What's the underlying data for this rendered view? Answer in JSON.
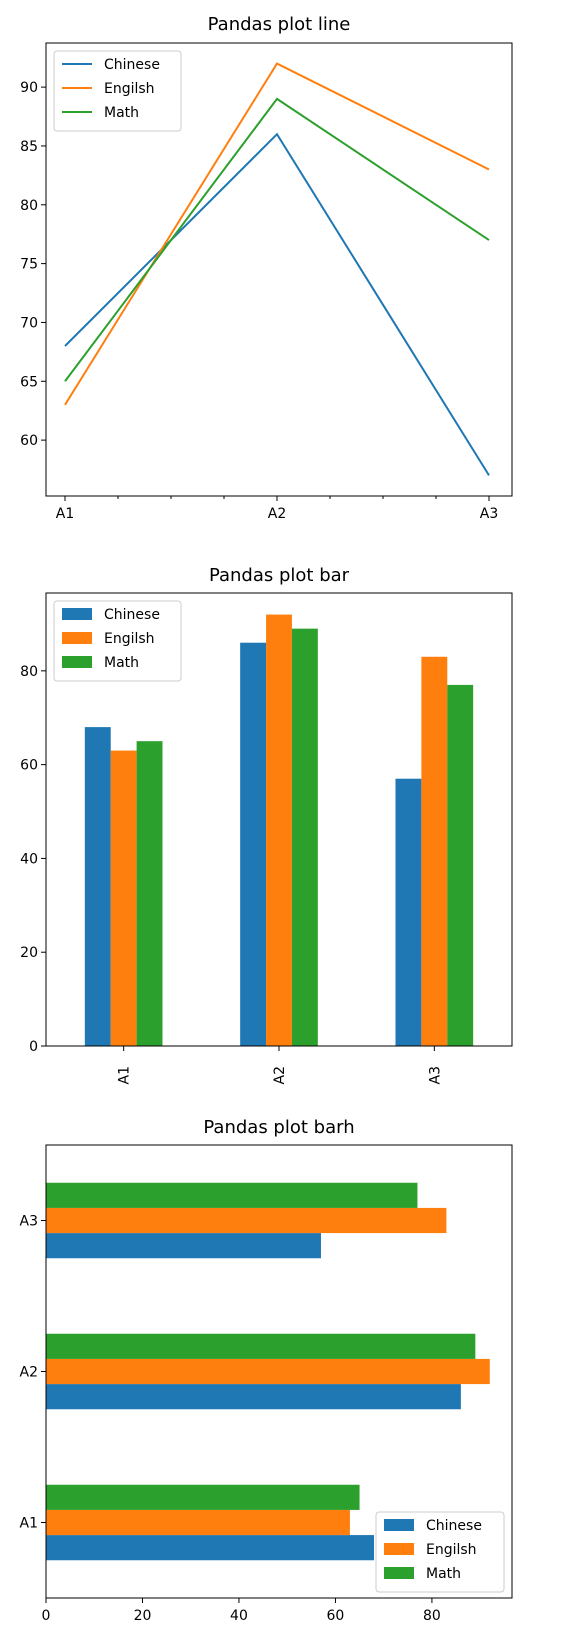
{
  "chart_data": [
    {
      "type": "line",
      "title": "Pandas plot line",
      "categories": [
        "A1",
        "A2",
        "A3"
      ],
      "series": [
        {
          "name": "Chinese",
          "values": [
            68,
            86,
            57
          ]
        },
        {
          "name": "Engilsh",
          "values": [
            63,
            92,
            83
          ]
        },
        {
          "name": "Math",
          "values": [
            65,
            89,
            77
          ]
        }
      ],
      "ylim": [
        55.25,
        93.75
      ],
      "yticks": [
        "60",
        "65",
        "70",
        "75",
        "80",
        "85",
        "90"
      ],
      "grid": false,
      "legend": "top-left"
    },
    {
      "type": "bar",
      "title": "Pandas plot bar",
      "categories": [
        "A1",
        "A2",
        "A3"
      ],
      "series": [
        {
          "name": "Chinese",
          "values": [
            68,
            86,
            57
          ]
        },
        {
          "name": "Engilsh",
          "values": [
            63,
            92,
            83
          ]
        },
        {
          "name": "Math",
          "values": [
            65,
            89,
            77
          ]
        }
      ],
      "ylim": [
        0,
        96.6
      ],
      "yticks": [
        "0",
        "20",
        "40",
        "60",
        "80"
      ],
      "grid": false,
      "legend": "top-left"
    },
    {
      "type": "barh",
      "title": "Pandas plot barh",
      "categories": [
        "A1",
        "A2",
        "A3"
      ],
      "series": [
        {
          "name": "Chinese",
          "values": [
            68,
            86,
            57
          ]
        },
        {
          "name": "Engilsh",
          "values": [
            63,
            92,
            83
          ]
        },
        {
          "name": "Math",
          "values": [
            65,
            89,
            77
          ]
        }
      ],
      "xlim": [
        0,
        96.6
      ],
      "xticks": [
        "0",
        "20",
        "40",
        "60",
        "80"
      ],
      "grid": false,
      "legend": "bottom-right"
    }
  ],
  "colors": {
    "line": [
      "#1f77b4",
      "#ff7f0e",
      "#2ca02c"
    ],
    "bar": [
      "#1f77b4",
      "#ff7f0e",
      "#2ca02c"
    ],
    "barh": [
      "#1f77b4",
      "#ff7f0e",
      "#2ca02c"
    ]
  }
}
